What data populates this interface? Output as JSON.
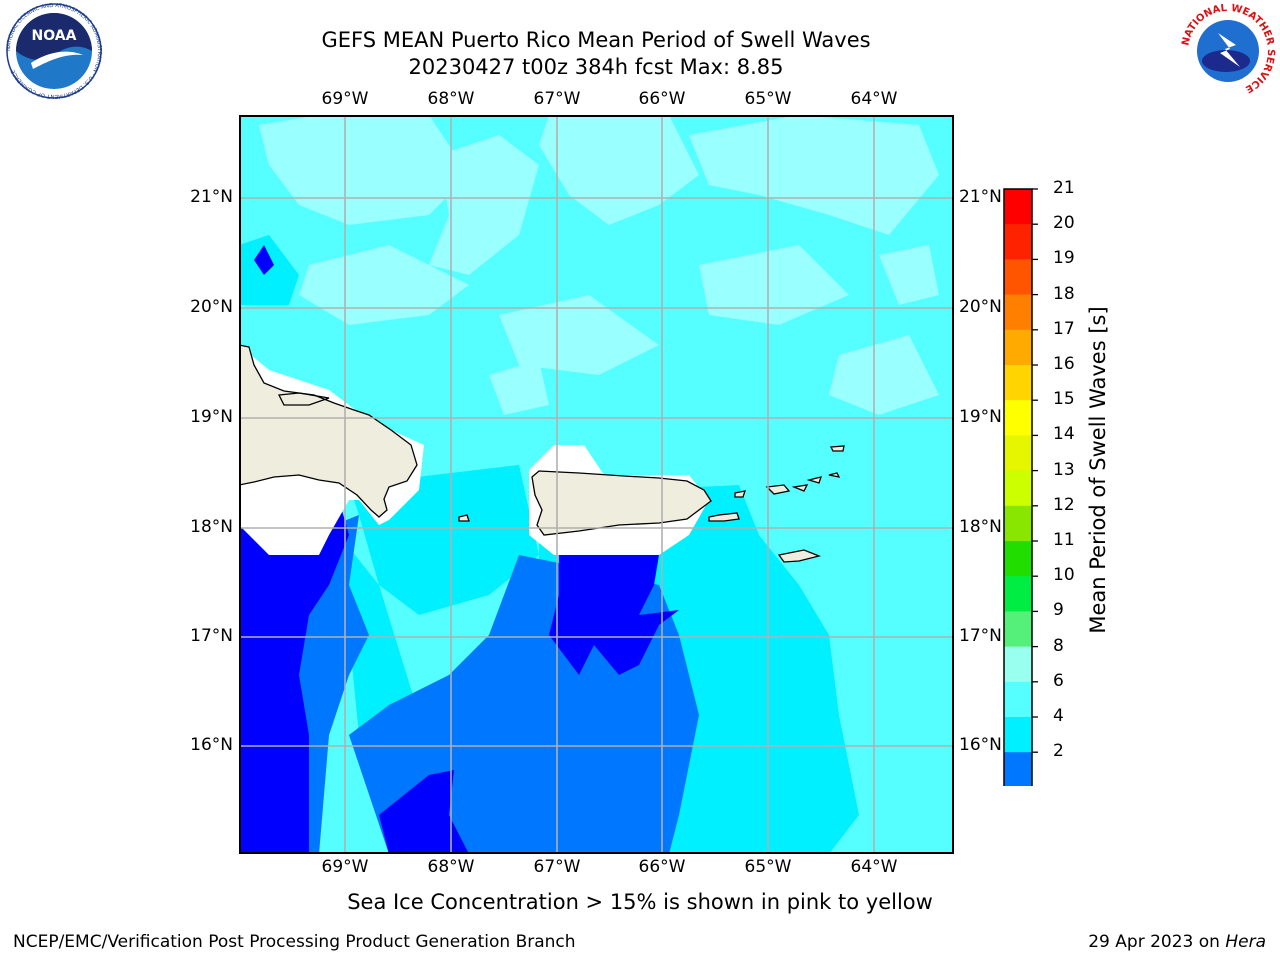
{
  "header": {
    "title_line1": "GEFS MEAN Puerto Rico Mean Period of Swell Waves",
    "title_line2": "20230427 t00z 384h fcst   Max: 8.85"
  },
  "map": {
    "lon_labels": [
      "69°W",
      "68°W",
      "67°W",
      "66°W",
      "65°W",
      "64°W"
    ],
    "lat_labels": [
      "21°N",
      "20°N",
      "19°N",
      "18°N",
      "17°N",
      "16°N"
    ]
  },
  "colorbar": {
    "label": "Mean Period of Swell Waves [s]",
    "ticks": [
      "21",
      "20",
      "19",
      "18",
      "17",
      "16",
      "15",
      "14",
      "13",
      "12",
      "11",
      "10",
      "9",
      "8",
      "6",
      "4",
      "2"
    ],
    "colors": [
      "#ff0000",
      "#ff2200",
      "#ff5500",
      "#ff8000",
      "#ffaa00",
      "#ffd400",
      "#ffff00",
      "#e6f500",
      "#ccff00",
      "#88e600",
      "#22dd00",
      "#00ee44",
      "#55f07a",
      "#99ffee",
      "#55ffff",
      "#00f0ff",
      "#0077ff"
    ],
    "under_color": "#0000ff"
  },
  "legend_text": {
    "sea_ice_note": "Sea Ice Concentration > 15% is shown in pink to yellow"
  },
  "footer": {
    "left": "NCEP/EMC/Verification Post Processing Product Generation Branch",
    "date": "29 Apr 2023 on ",
    "machine": "Hera"
  },
  "logos": {
    "noaa_text": "NOAA",
    "noaa_ring_text": "NATIONAL OCEANIC AND ATMOSPHERIC ADMINISTRATION · U.S. DEPARTMENT OF COMMERCE",
    "nws_ring_text": "NATIONAL WEATHER SERVICE"
  }
}
